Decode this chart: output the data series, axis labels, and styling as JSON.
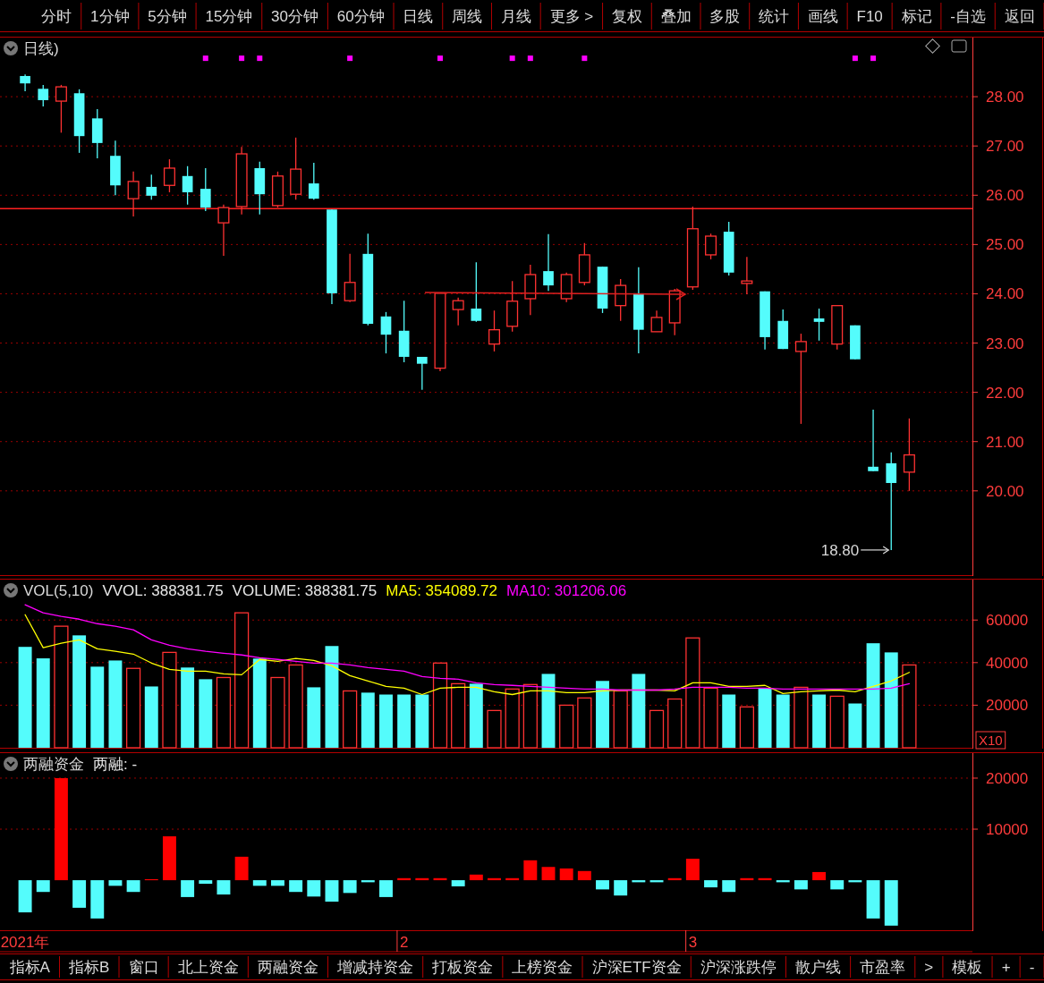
{
  "chart_data": [
    {
      "type": "other",
      "annotations": [
        "分时",
        "1分钟",
        "5分钟",
        "15分钟",
        "30分钟",
        "60分钟",
        "日线",
        "周线",
        "月线",
        "更多 >",
        "复权",
        "叠加",
        "多股",
        "统计",
        "画线",
        "F10",
        "标记",
        "-自选",
        "返回"
      ]
    },
    {
      "type": "candlestick",
      "title": "日线)",
      "grid": "y",
      "categories": [
        null,
        null,
        null,
        null,
        null,
        null,
        null,
        null,
        null,
        null,
        null,
        null,
        null,
        null,
        null,
        null,
        null,
        null,
        null,
        null,
        null,
        null,
        null,
        null,
        null,
        null,
        null,
        null,
        null,
        null,
        null,
        null,
        null,
        null,
        null,
        null,
        null,
        null,
        null,
        null,
        null,
        null,
        null,
        null,
        null,
        null,
        null,
        null,
        null,
        null
      ],
      "ylim": [
        18.29,
        29.2
      ],
      "yticks": [
        {
          "value": 20,
          "label": "20.00"
        },
        {
          "value": 21,
          "label": "21.00"
        },
        {
          "value": 22,
          "label": "22.00"
        },
        {
          "value": 23,
          "label": "23.00"
        },
        {
          "value": 24,
          "label": "24.00"
        },
        {
          "value": 25,
          "label": "25.00"
        },
        {
          "value": 26,
          "label": "26.00"
        },
        {
          "value": 27,
          "label": "27.00"
        },
        {
          "value": 28,
          "label": "28.00"
        }
      ],
      "ohlc": [
        [
          28.42,
          28.45,
          28.11,
          28.27
        ],
        [
          28.16,
          28.24,
          27.8,
          27.93
        ],
        [
          27.91,
          28.24,
          27.27,
          28.2
        ],
        [
          28.07,
          28.15,
          26.86,
          27.2
        ],
        [
          27.56,
          27.75,
          26.75,
          27.06
        ],
        [
          26.8,
          27.11,
          26.0,
          26.2
        ],
        [
          25.93,
          26.48,
          25.57,
          26.28
        ],
        [
          26.17,
          26.42,
          25.91,
          25.99
        ],
        [
          26.2,
          26.73,
          26.06,
          26.55
        ],
        [
          26.39,
          26.59,
          25.81,
          26.06
        ],
        [
          26.13,
          26.55,
          25.68,
          25.75
        ],
        [
          25.44,
          25.81,
          24.77,
          25.75
        ],
        [
          25.77,
          26.98,
          25.61,
          26.84
        ],
        [
          26.55,
          26.68,
          25.61,
          26.02
        ],
        [
          25.79,
          26.48,
          25.75,
          26.39
        ],
        [
          26.02,
          27.17,
          25.91,
          26.53
        ],
        [
          26.24,
          26.66,
          25.91,
          25.93
        ],
        [
          25.71,
          25.71,
          23.79,
          24.01
        ],
        [
          23.86,
          24.81,
          23.83,
          24.23
        ],
        [
          24.81,
          25.22,
          23.36,
          23.39
        ],
        [
          23.54,
          23.63,
          22.79,
          23.17
        ],
        [
          23.25,
          23.86,
          22.61,
          22.72
        ],
        [
          22.72,
          22.72,
          22.05,
          22.58
        ],
        [
          22.49,
          24.01,
          22.43,
          24.01
        ],
        [
          23.68,
          23.92,
          23.36,
          23.86
        ],
        [
          23.7,
          24.64,
          23.43,
          23.45
        ],
        [
          22.98,
          23.66,
          22.83,
          23.27
        ],
        [
          23.34,
          24.26,
          23.23,
          23.85
        ],
        [
          23.9,
          24.59,
          23.57,
          24.39
        ],
        [
          24.46,
          25.21,
          24.06,
          24.17
        ],
        [
          23.9,
          24.43,
          23.83,
          24.39
        ],
        [
          24.23,
          25.03,
          24.17,
          24.79
        ],
        [
          24.55,
          24.55,
          23.61,
          23.7
        ],
        [
          23.76,
          24.3,
          23.45,
          24.17
        ],
        [
          24.01,
          24.54,
          22.79,
          23.27
        ],
        [
          23.23,
          23.66,
          23.23,
          23.52
        ],
        [
          23.41,
          24.1,
          23.16,
          24.06
        ],
        [
          24.14,
          25.77,
          24.08,
          25.32
        ],
        [
          24.79,
          25.22,
          24.7,
          25.17
        ],
        [
          25.26,
          25.46,
          24.37,
          24.43
        ],
        [
          24.21,
          24.75,
          23.99,
          24.26
        ],
        [
          24.05,
          24.05,
          22.87,
          23.12
        ],
        [
          23.45,
          23.68,
          22.88,
          22.88
        ],
        [
          22.83,
          23.19,
          21.36,
          23.03
        ],
        [
          23.5,
          23.7,
          23.05,
          23.43
        ],
        [
          22.98,
          23.76,
          22.87,
          23.76
        ],
        [
          23.36,
          23.36,
          22.67,
          22.67
        ],
        [
          20.49,
          21.65,
          20.4,
          20.4
        ],
        [
          20.56,
          20.78,
          18.8,
          20.16
        ],
        [
          20.38,
          21.47,
          20.0,
          20.73
        ]
      ],
      "colors": [
        "#54fcfc",
        "#54fcfc",
        "#ff3232",
        "#54fcfc",
        "#54fcfc",
        "#54fcfc",
        "#ff3232",
        "#54fcfc",
        "#ff3232",
        "#54fcfc",
        "#54fcfc",
        "#ff3232",
        "#ff3232",
        "#54fcfc",
        "#ff3232",
        "#ff3232",
        "#54fcfc",
        "#54fcfc",
        "#ff3232",
        "#54fcfc",
        "#54fcfc",
        "#54fcfc",
        "#54fcfc",
        "#ff3232",
        "#ff3232",
        "#54fcfc",
        "#ff3232",
        "#ff3232",
        "#ff3232",
        "#54fcfc",
        "#ff3232",
        "#ff3232",
        "#54fcfc",
        "#ff3232",
        "#54fcfc",
        "#ff3232",
        "#ff3232",
        "#ff3232",
        "#ff3232",
        "#54fcfc",
        "#ff3232",
        "#54fcfc",
        "#54fcfc",
        "#ff3232",
        "#54fcfc",
        "#ff3232",
        "#54fcfc",
        "#54fcfc",
        "#54fcfc",
        "#ff3232"
      ],
      "series": [
        {
          "type": "scatter",
          "marker": "square",
          "color": "#ff00ff",
          "values": [
            null,
            null,
            null,
            null,
            null,
            null,
            null,
            null,
            null,
            null,
            28.78,
            null,
            28.78,
            28.78,
            null,
            null,
            null,
            null,
            28.78,
            null,
            null,
            null,
            null,
            28.78,
            null,
            null,
            null,
            28.78,
            28.78,
            null,
            null,
            28.78,
            null,
            null,
            null,
            null,
            null,
            null,
            null,
            null,
            null,
            null,
            null,
            null,
            null,
            null,
            28.78,
            28.78,
            null,
            null
          ]
        }
      ],
      "ref_lines": [
        {
          "axis": "y",
          "value": 25.73,
          "color": "#ff2020"
        }
      ],
      "annotations": [
        "18.80"
      ]
    },
    {
      "type": "bar",
      "title": "VOL(5,10)",
      "grid": "y",
      "ylabel": "X10",
      "categories": [
        null,
        null,
        null,
        null,
        null,
        null,
        null,
        null,
        null,
        null,
        null,
        null,
        null,
        null,
        null,
        null,
        null,
        null,
        null,
        null,
        null,
        null,
        null,
        null,
        null,
        null,
        null,
        null,
        null,
        null,
        null,
        null,
        null,
        null,
        null,
        null,
        null,
        null,
        null,
        null,
        null,
        null,
        null,
        null,
        null,
        null,
        null,
        null,
        null,
        null
      ],
      "ylim": [
        0,
        79000
      ],
      "yticks": [
        20000,
        40000,
        60000
      ],
      "annotations": [
        "VVOL: 388381.75",
        "VOLUME: 388381.75"
      ],
      "values": [
        47400,
        42000,
        57100,
        52800,
        38100,
        41000,
        37300,
        28800,
        44800,
        37700,
        32200,
        33000,
        63400,
        41900,
        33000,
        38900,
        28400,
        47800,
        26700,
        25900,
        25000,
        25000,
        25000,
        39800,
        30100,
        30100,
        17500,
        27600,
        29700,
        34700,
        20000,
        23400,
        31400,
        26700,
        34700,
        17500,
        22900,
        51600,
        28000,
        25000,
        19200,
        28000,
        25000,
        28400,
        25000,
        24200,
        20800,
        49100,
        44800,
        38900
      ],
      "colors": [
        "#54fcfc",
        "#54fcfc",
        "#ff3232",
        "#54fcfc",
        "#54fcfc",
        "#54fcfc",
        "#ff3232",
        "#54fcfc",
        "#ff3232",
        "#54fcfc",
        "#54fcfc",
        "#ff3232",
        "#ff3232",
        "#54fcfc",
        "#ff3232",
        "#ff3232",
        "#54fcfc",
        "#54fcfc",
        "#ff3232",
        "#54fcfc",
        "#54fcfc",
        "#54fcfc",
        "#54fcfc",
        "#ff3232",
        "#ff3232",
        "#54fcfc",
        "#ff3232",
        "#ff3232",
        "#ff3232",
        "#54fcfc",
        "#ff3232",
        "#ff3232",
        "#54fcfc",
        "#ff3232",
        "#54fcfc",
        "#ff3232",
        "#ff3232",
        "#ff3232",
        "#ff3232",
        "#54fcfc",
        "#ff3232",
        "#54fcfc",
        "#54fcfc",
        "#ff3232",
        "#54fcfc",
        "#ff3232",
        "#54fcfc",
        "#54fcfc",
        "#54fcfc",
        "#ff3232"
      ],
      "series": [
        {
          "type": "line",
          "name": "MA5: 354089.72",
          "color": "#ffff00",
          "values": [
            62500,
            47000,
            49100,
            50700,
            46500,
            45300,
            44000,
            39800,
            36800,
            36000,
            36000,
            34700,
            34300,
            41500,
            40600,
            42000,
            41000,
            38500,
            33900,
            31400,
            28800,
            28000,
            25000,
            28000,
            28400,
            28400,
            26300,
            25000,
            26700,
            26700,
            25900,
            25900,
            26700,
            27100,
            27100,
            27100,
            26700,
            30500,
            30500,
            28800,
            28800,
            29300,
            25500,
            26300,
            26700,
            27100,
            26300,
            28800,
            31400,
            35400
          ]
        },
        {
          "type": "line",
          "name": "MA10: 301206.06",
          "color": "#ff00ff",
          "values": [
            67200,
            63400,
            61700,
            60400,
            58300,
            57100,
            55400,
            50700,
            48200,
            46500,
            45300,
            44400,
            43600,
            42300,
            41500,
            40600,
            39800,
            39800,
            38900,
            37700,
            36800,
            36000,
            33500,
            32600,
            32200,
            30500,
            29700,
            29300,
            28800,
            28400,
            28000,
            27600,
            27600,
            27100,
            27100,
            27100,
            27600,
            28400,
            28400,
            28400,
            28000,
            28000,
            27600,
            27600,
            27600,
            27600,
            27600,
            27600,
            28000,
            30100
          ]
        }
      ]
    },
    {
      "type": "bar",
      "title": "两融资金",
      "grid": "y",
      "categories": [
        "2021年",
        null,
        null,
        null,
        null,
        null,
        null,
        null,
        null,
        null,
        null,
        null,
        null,
        null,
        null,
        null,
        null,
        null,
        null,
        null,
        null,
        "2",
        null,
        null,
        null,
        null,
        null,
        null,
        null,
        null,
        null,
        null,
        null,
        null,
        null,
        null,
        null,
        "3",
        null,
        null,
        null,
        null,
        null,
        null,
        null,
        null,
        null,
        null,
        null,
        null
      ],
      "ylim": [
        -9800,
        24900
      ],
      "yticks": [
        10000,
        20000
      ],
      "annotations": [
        "两融: -"
      ],
      "values": [
        -6300,
        -2300,
        20000,
        -5400,
        -7500,
        -1100,
        -2300,
        200,
        8600,
        -3300,
        -700,
        -2800,
        4600,
        -1100,
        -1100,
        -2300,
        -3200,
        -4200,
        -2500,
        -400,
        -3300,
        400,
        400,
        400,
        -1200,
        1100,
        400,
        400,
        3900,
        2600,
        2300,
        1800,
        -1800,
        -3000,
        -400,
        -400,
        400,
        4200,
        -1400,
        -2300,
        400,
        400,
        -400,
        -1800,
        1600,
        -1800,
        -400,
        -7500,
        -8900,
        null
      ],
      "colors": [
        "#54fcfc",
        "#54fcfc",
        "#ff0000",
        "#54fcfc",
        "#54fcfc",
        "#54fcfc",
        "#54fcfc",
        "#ff0000",
        "#ff0000",
        "#54fcfc",
        "#54fcfc",
        "#54fcfc",
        "#ff0000",
        "#54fcfc",
        "#54fcfc",
        "#54fcfc",
        "#54fcfc",
        "#54fcfc",
        "#54fcfc",
        "#54fcfc",
        "#54fcfc",
        "#ff0000",
        "#ff0000",
        "#ff0000",
        "#54fcfc",
        "#ff0000",
        "#ff0000",
        "#ff0000",
        "#ff0000",
        "#ff0000",
        "#ff0000",
        "#ff0000",
        "#54fcfc",
        "#54fcfc",
        "#54fcfc",
        "#54fcfc",
        "#ff0000",
        "#ff0000",
        "#54fcfc",
        "#54fcfc",
        "#ff0000",
        "#ff0000",
        "#54fcfc",
        "#54fcfc",
        "#ff0000",
        "#54fcfc",
        "#54fcfc",
        "#54fcfc",
        "#54fcfc",
        "#54fcfc"
      ]
    },
    {
      "type": "other",
      "annotations": [
        "指标A",
        "指标B",
        "窗口",
        "北上资金",
        "两融资金",
        "增减持资金",
        "打板资金",
        "上榜资金",
        "沪深ETF资金",
        "沪深涨跌停",
        "散户线",
        "市盈率",
        ">",
        "模板",
        "+",
        "-"
      ]
    }
  ]
}
